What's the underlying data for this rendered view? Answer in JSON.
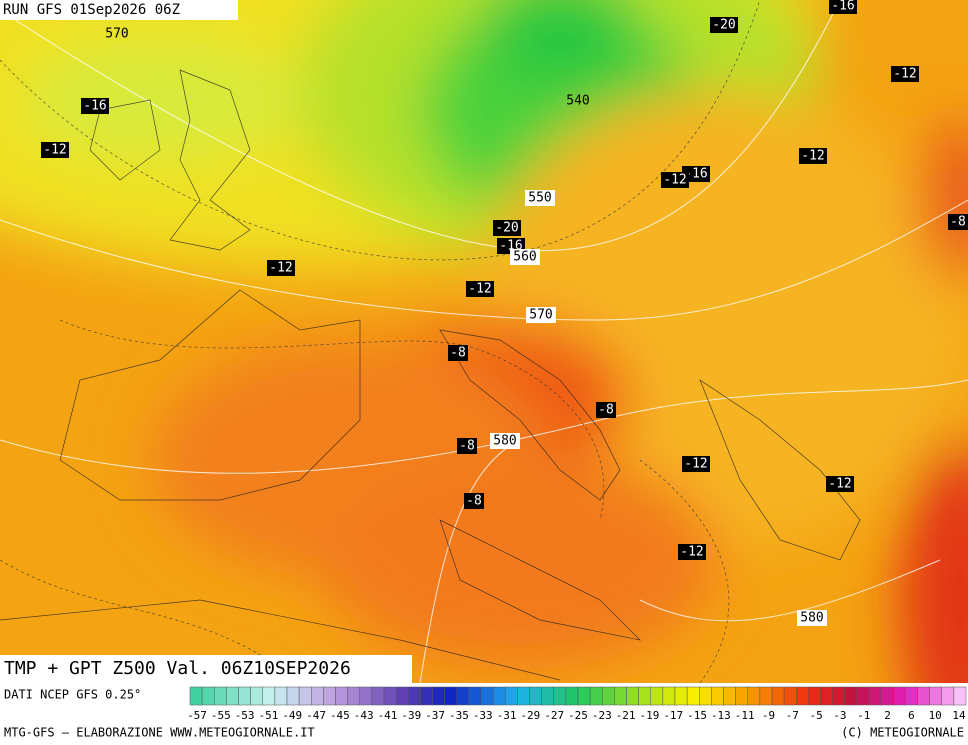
{
  "header": {
    "run": "RUN GFS 01Sep2026 06Z",
    "title": "TMP + GPT Z500 Val. 06Z10SEP2026"
  },
  "map": {
    "temperature_labels": [
      "-16",
      "-20",
      "-12",
      "-16",
      "-12",
      "-12",
      "-16",
      "-12",
      "-8",
      "-20",
      "-16",
      "-12",
      "-12",
      "-8",
      "-8",
      "-8",
      "-12",
      "-12",
      "-8",
      "-12"
    ],
    "height_labels": [
      "570",
      "540",
      "550",
      "560",
      "570",
      "580",
      "580"
    ]
  },
  "legend": {
    "source": "DATI NCEP GFS 0.25°",
    "scale_labels": [
      "-57",
      "-55",
      "-53",
      "-51",
      "-49",
      "-47",
      "-45",
      "-43",
      "-41",
      "-39",
      "-37",
      "-35",
      "-33",
      "-31",
      "-29",
      "-27",
      "-25",
      "-23",
      "-21",
      "-19",
      "-17",
      "-15",
      "-13",
      "-11",
      "-9",
      "-7",
      "-5",
      "-3",
      "-1",
      "2",
      "6",
      "10",
      "14"
    ]
  },
  "footer": {
    "left": "MTG-GFS — ELABORAZIONE WWW.METEOGIORNALE.IT",
    "right": "(C) METEOGIORNALE"
  }
}
